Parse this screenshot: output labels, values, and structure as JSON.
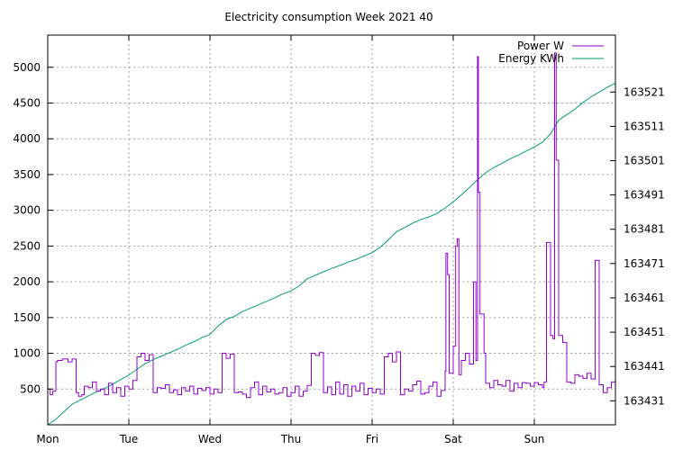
{
  "chart_data": {
    "type": "line",
    "title": "Electricity consumption Week 2021 40",
    "xlabel": "",
    "ylabel": "",
    "x_categories": [
      "Mon",
      "Tue",
      "Wed",
      "Thu",
      "Fri",
      "Sat",
      "Sun"
    ],
    "xlim": [
      0,
      7
    ],
    "ylim_left": [
      0,
      5450
    ],
    "ylim_right": [
      163424,
      163537.6
    ],
    "y_left_ticks": [
      "500",
      "1000",
      "1500",
      "2000",
      "2500",
      "3000",
      "3500",
      "4000",
      "4500",
      "5000"
    ],
    "y_right_ticks": [
      "163431",
      "163441",
      "163451",
      "163461",
      "163471",
      "163481",
      "163491",
      "163501",
      "163511",
      "163521"
    ],
    "grid": true,
    "legend_position": "top-right",
    "colors": {
      "power": "#9400d3",
      "energy": "#009e73",
      "grid": "#a0a0a0",
      "axis": "#000000"
    },
    "series": [
      {
        "name": "Power W",
        "axis": "left",
        "style": "steps",
        "x": [
          0.0,
          0.03,
          0.06,
          0.1,
          0.12,
          0.18,
          0.25,
          0.3,
          0.35,
          0.38,
          0.42,
          0.45,
          0.5,
          0.55,
          0.6,
          0.65,
          0.7,
          0.75,
          0.8,
          0.85,
          0.9,
          0.95,
          1.0,
          1.05,
          1.1,
          1.15,
          1.2,
          1.25,
          1.3,
          1.35,
          1.4,
          1.45,
          1.5,
          1.55,
          1.6,
          1.65,
          1.7,
          1.75,
          1.8,
          1.85,
          1.9,
          1.95,
          2.0,
          2.05,
          2.1,
          2.15,
          2.2,
          2.25,
          2.3,
          2.35,
          2.4,
          2.45,
          2.5,
          2.55,
          2.6,
          2.65,
          2.7,
          2.75,
          2.8,
          2.85,
          2.9,
          2.95,
          3.0,
          3.05,
          3.1,
          3.15,
          3.2,
          3.25,
          3.3,
          3.35,
          3.4,
          3.45,
          3.5,
          3.55,
          3.6,
          3.65,
          3.7,
          3.75,
          3.8,
          3.85,
          3.9,
          3.95,
          4.0,
          4.05,
          4.1,
          4.15,
          4.2,
          4.25,
          4.3,
          4.35,
          4.4,
          4.45,
          4.5,
          4.55,
          4.6,
          4.65,
          4.7,
          4.75,
          4.8,
          4.85,
          4.9,
          4.91,
          4.93,
          4.95,
          5.0,
          5.03,
          5.05,
          5.07,
          5.1,
          5.15,
          5.2,
          5.25,
          5.28,
          5.3,
          5.31,
          5.33,
          5.38,
          5.4,
          5.45,
          5.5,
          5.55,
          5.6,
          5.65,
          5.7,
          5.75,
          5.8,
          5.85,
          5.9,
          5.95,
          6.0,
          6.05,
          6.1,
          6.12,
          6.15,
          6.2,
          6.23,
          6.25,
          6.27,
          6.3,
          6.35,
          6.4,
          6.45,
          6.5,
          6.55,
          6.6,
          6.65,
          6.7,
          6.75,
          6.8,
          6.85,
          6.9,
          6.95,
          7.0
        ],
        "y": [
          500,
          420,
          470,
          880,
          900,
          920,
          880,
          920,
          450,
          400,
          420,
          540,
          520,
          600,
          470,
          500,
          420,
          580,
          450,
          520,
          400,
          540,
          500,
          620,
          950,
          1000,
          900,
          980,
          450,
          520,
          510,
          560,
          450,
          490,
          420,
          520,
          470,
          540,
          430,
          510,
          480,
          520,
          430,
          500,
          450,
          1000,
          930,
          990,
          450,
          460,
          430,
          380,
          520,
          600,
          420,
          540,
          460,
          500,
          430,
          450,
          520,
          400,
          450,
          540,
          400,
          470,
          550,
          1000,
          970,
          1010,
          450,
          530,
          420,
          600,
          430,
          560,
          400,
          540,
          470,
          580,
          420,
          510,
          450,
          500,
          430,
          950,
          1000,
          880,
          1020,
          420,
          500,
          470,
          560,
          610,
          430,
          450,
          540,
          600,
          400,
          480,
          750,
          2400,
          2100,
          720,
          1100,
          2500,
          2600,
          700,
          900,
          1000,
          850,
          2000,
          900,
          5150,
          3250,
          1550,
          1000,
          580,
          520,
          620,
          560,
          540,
          620,
          470,
          580,
          520,
          590,
          580,
          540,
          590,
          560,
          520,
          600,
          2550,
          1250,
          1200,
          5200,
          3700,
          1250,
          1150,
          600,
          580,
          700,
          680,
          650,
          720,
          640,
          2300,
          560,
          450,
          520,
          600,
          500
        ]
      },
      {
        "name": "Energy KWh",
        "axis": "right",
        "style": "lines",
        "x": [
          0.0,
          0.1,
          0.2,
          0.3,
          0.4,
          0.5,
          0.6,
          0.7,
          0.8,
          0.9,
          1.0,
          1.1,
          1.2,
          1.3,
          1.4,
          1.5,
          1.6,
          1.7,
          1.8,
          1.9,
          2.0,
          2.1,
          2.2,
          2.3,
          2.4,
          2.5,
          2.6,
          2.7,
          2.8,
          2.9,
          3.0,
          3.1,
          3.2,
          3.3,
          3.4,
          3.5,
          3.6,
          3.7,
          3.8,
          3.9,
          4.0,
          4.1,
          4.2,
          4.3,
          4.4,
          4.5,
          4.6,
          4.7,
          4.8,
          4.9,
          5.0,
          5.1,
          5.2,
          5.3,
          5.4,
          5.5,
          5.6,
          5.7,
          5.8,
          5.9,
          6.0,
          6.1,
          6.2,
          6.3,
          6.4,
          6.5,
          6.6,
          6.7,
          6.8,
          6.9,
          7.0
        ],
        "y": [
          163424.0,
          163425.6,
          163427.8,
          163430.0,
          163431.2,
          163432.4,
          163433.6,
          163434.6,
          163435.8,
          163437.2,
          163438.5,
          163440.2,
          163441.8,
          163443.0,
          163444.0,
          163445.0,
          163446.0,
          163447.2,
          163448.2,
          163449.4,
          163450.3,
          163452.8,
          163454.7,
          163455.6,
          163457.0,
          163458.0,
          163459.0,
          163460.0,
          163461.0,
          163462.2,
          163463.0,
          163464.5,
          163466.6,
          163467.6,
          163468.6,
          163469.6,
          163470.4,
          163471.4,
          163472.2,
          163473.2,
          163474.2,
          163475.8,
          163477.9,
          163480.3,
          163481.5,
          163482.8,
          163483.8,
          163484.6,
          163485.6,
          163487.2,
          163489.0,
          163491.0,
          163493.2,
          163495.4,
          163497.5,
          163499.0,
          163500.2,
          163501.5,
          163502.6,
          163503.8,
          163505.0,
          163506.4,
          163508.8,
          163512.8,
          163514.4,
          163516.0,
          163518.0,
          163519.6,
          163521.0,
          163522.4,
          163523.6
        ]
      }
    ]
  }
}
